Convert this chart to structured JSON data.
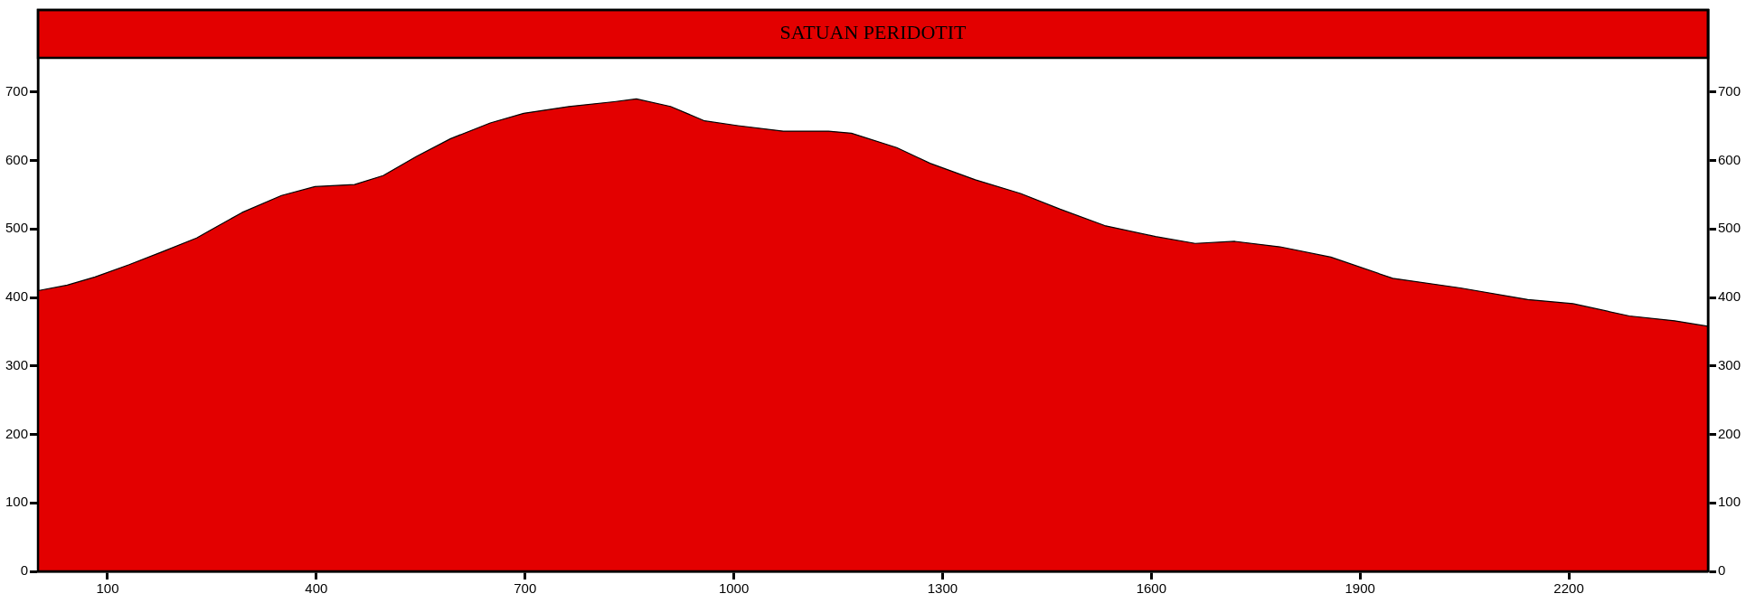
{
  "chart_data": {
    "type": "area",
    "x": [
      0,
      42,
      82,
      131,
      179,
      228,
      293,
      350,
      398,
      455,
      496,
      544,
      593,
      650,
      698,
      763,
      828,
      860,
      909,
      958,
      1006,
      1071,
      1136,
      1169,
      1234,
      1282,
      1347,
      1412,
      1469,
      1533,
      1606,
      1663,
      1720,
      1785,
      1858,
      1947,
      2044,
      2141,
      2206,
      2287,
      2352,
      2400
    ],
    "series": [
      {
        "color": "#e30000",
        "values": [
          410,
          418,
          430,
          448,
          467,
          487,
          524,
          549,
          562,
          565,
          578,
          606,
          632,
          655,
          669,
          679,
          686,
          690,
          679,
          658,
          651,
          643,
          643,
          640,
          619,
          596,
          572,
          552,
          529,
          505,
          489,
          479,
          482,
          474,
          459,
          428,
          414,
          397,
          391,
          373,
          366,
          358
        ]
      }
    ],
    "xlim": [
      0,
      2400
    ],
    "xticks": [
      100,
      400,
      700,
      1000,
      1300,
      1600,
      1900,
      2200
    ],
    "ylim": [
      0,
      820
    ],
    "yticks": [
      0,
      100,
      200,
      300,
      400,
      500,
      600,
      700
    ],
    "y2lim": [
      0,
      820
    ],
    "y2ticks": [
      0,
      100,
      200,
      300,
      400,
      500,
      600,
      700
    ],
    "bands": [
      {
        "axis": "y",
        "from": 750,
        "to": 820,
        "label": "SATUAN PERIDOTIT",
        "color": "#e30000"
      }
    ],
    "grid": false,
    "legend": false
  }
}
